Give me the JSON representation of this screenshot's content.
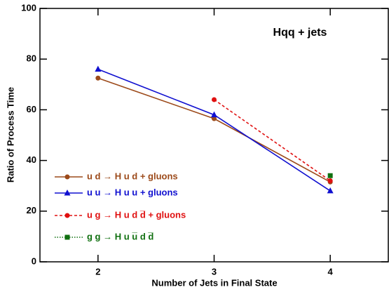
{
  "chart_data": {
    "type": "line",
    "title": "Hqq + jets",
    "x_label": "Number of Jets in Final State",
    "y_label": "Ratio of Process Time",
    "x": [
      2,
      3,
      4
    ],
    "xlim": [
      1.5,
      4.5
    ],
    "xticks": [
      2,
      3,
      4
    ],
    "ylim": [
      0,
      100
    ],
    "yticks": [
      0,
      20,
      40,
      60,
      80,
      100
    ],
    "legend": "lower left",
    "series": [
      {
        "name": "u d → H u d + gluons",
        "color": "#9c4a1a",
        "marker": "circle",
        "linestyle": "solid",
        "values": [
          72.5,
          56.5,
          31.5
        ]
      },
      {
        "name": "u u → H u u + gluons",
        "color": "#1010d0",
        "marker": "triangle",
        "linestyle": "solid",
        "values": [
          76,
          58,
          28
        ]
      },
      {
        "name": "u g → H u d d̅ + gluons",
        "color": "#e01010",
        "marker": "circle",
        "linestyle": "dashed",
        "values": [
          null,
          64,
          32
        ]
      },
      {
        "name": "g g → H u u̅ d d̅",
        "color": "#107010",
        "marker": "square",
        "linestyle": "dotted",
        "values": [
          null,
          null,
          34
        ]
      }
    ]
  }
}
